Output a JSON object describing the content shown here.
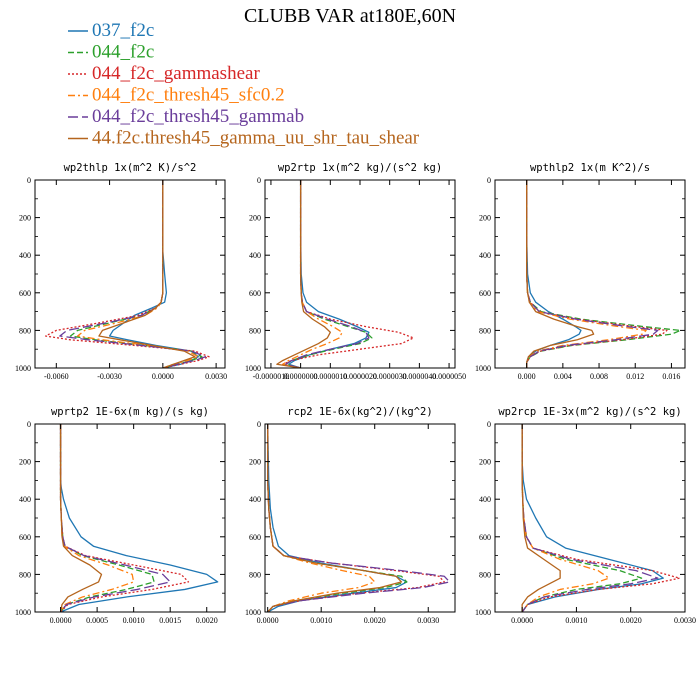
{
  "figure": {
    "title": "CLUBB VAR at180E,60N"
  },
  "legend": [
    {
      "label": "037_f2c",
      "color": "#1f77b4",
      "dash": "solid"
    },
    {
      "label": "044_f2c",
      "color": "#2ca02c",
      "dash": "dashed"
    },
    {
      "label": "044_f2c_gammashear",
      "color": "#d62728",
      "dash": "dotted"
    },
    {
      "label": "044_f2c_thresh45_sfc0.2",
      "color": "#ff7f0e",
      "dash": "dashdot"
    },
    {
      "label": "044_f2c_thresh45_gammab",
      "color": "#6a3d9a",
      "dash": "longdash"
    },
    {
      "label": "44.f2c.thresh45_gamma_uu_shr_tau_shear",
      "color": "#b5651d",
      "dash": "solid"
    }
  ],
  "chart_data": [
    {
      "type": "line",
      "title": "wp2thlp  1x(m^2 K)/s^2",
      "xlim": [
        -0.0072,
        0.0035
      ],
      "ylim": [
        1000,
        0
      ],
      "xticks": [
        "-0.0060",
        "-0.0030",
        "0.0000",
        "0.0030"
      ],
      "xtick_values": [
        -0.006,
        -0.003,
        0.0,
        0.003
      ],
      "yticks": [
        "0",
        "200",
        "400",
        "600",
        "800",
        "1000"
      ],
      "y": [
        0,
        200,
        380,
        500,
        600,
        650,
        680,
        720,
        760,
        800,
        830,
        850,
        880,
        910,
        940,
        960,
        980,
        1000
      ],
      "series": [
        {
          "values": [
            0,
            0,
            0,
            0.0001,
            0.0002,
            0.0001,
            -0.0006,
            -0.0016,
            -0.0022,
            -0.0028,
            -0.003,
            -0.002,
            -0.0004,
            0.0016,
            0.002,
            0.0016,
            0.001,
            0.0
          ]
        },
        {
          "values": [
            0,
            0,
            0,
            0,
            0,
            -0.0001,
            -0.0004,
            -0.0012,
            -0.003,
            -0.0048,
            -0.0052,
            -0.0038,
            -0.001,
            0.0016,
            0.0022,
            0.0016,
            0.0008,
            0.0
          ]
        },
        {
          "values": [
            0,
            0,
            0,
            0,
            0,
            -0.0001,
            -0.0004,
            -0.0014,
            -0.0036,
            -0.006,
            -0.0066,
            -0.0052,
            -0.0016,
            0.0018,
            0.0026,
            0.002,
            0.001,
            0.0
          ]
        },
        {
          "values": [
            0,
            0,
            0,
            0,
            0,
            -0.0001,
            -0.0003,
            -0.001,
            -0.0026,
            -0.0044,
            -0.0048,
            -0.0034,
            -0.0008,
            0.0014,
            0.002,
            0.0014,
            0.0006,
            0.0
          ]
        },
        {
          "values": [
            0,
            0,
            0,
            0,
            0,
            -0.0001,
            -0.0004,
            -0.0012,
            -0.0032,
            -0.0054,
            -0.0058,
            -0.0042,
            -0.0012,
            0.0016,
            0.0024,
            0.0018,
            0.0008,
            0.0
          ]
        },
        {
          "values": [
            0,
            0,
            0,
            0,
            0,
            -0.0001,
            -0.0004,
            -0.001,
            -0.0022,
            -0.0034,
            -0.0036,
            -0.0024,
            -0.0006,
            0.0012,
            0.0018,
            0.0012,
            0.0006,
            0.0
          ]
        }
      ]
    },
    {
      "type": "line",
      "title": "wp2rtp  1x(m^2 kg)/(s^2 kg)",
      "xlim": [
        -1.2e-06,
        5.2e-06
      ],
      "ylim": [
        1000,
        0
      ],
      "xticks": [
        "-0.0000010",
        "0.0000000",
        "0.0000010",
        "0.0000020",
        "0.0000030",
        "0.0000040",
        "0.0000050"
      ],
      "xtick_values": [
        -1e-06,
        0.0,
        1e-06,
        2e-06,
        3e-06,
        4e-06,
        5e-06
      ],
      "yticks": [
        "0",
        "200",
        "400",
        "600",
        "800",
        "1000"
      ],
      "y": [
        0,
        300,
        500,
        600,
        650,
        700,
        740,
        780,
        810,
        840,
        870,
        900,
        930,
        960,
        980,
        1000
      ],
      "series": [
        {
          "values": [
            0,
            0,
            2e-08,
            8e-08,
            2e-07,
            6e-07,
            1.3e-06,
            1.9e-06,
            2.3e-06,
            2.2e-06,
            1.8e-06,
            1e-06,
            3e-07,
            -2e-07,
            -4e-07,
            0.0
          ]
        },
        {
          "values": [
            0,
            0,
            0,
            2e-08,
            6e-08,
            2e-07,
            8e-07,
            1.6e-06,
            2.2e-06,
            2.4e-06,
            2e-06,
            1.1e-06,
            3e-07,
            -3e-07,
            -5e-07,
            0.0
          ]
        },
        {
          "values": [
            0,
            0,
            0,
            2e-08,
            6e-08,
            2e-07,
            1e-06,
            2.2e-06,
            3.3e-06,
            3.8e-06,
            3.4e-06,
            2e-06,
            6e-07,
            -3e-07,
            -6e-07,
            0.0
          ]
        },
        {
          "values": [
            0,
            0,
            0,
            2e-08,
            5e-08,
            2e-07,
            6e-07,
            1.1e-06,
            1.4e-06,
            1.3e-06,
            9e-07,
            4e-07,
            0.0,
            -4e-07,
            -6e-07,
            0.0
          ]
        },
        {
          "values": [
            0,
            0,
            0,
            2e-08,
            6e-08,
            2e-07,
            9e-07,
            1.7e-06,
            2.2e-06,
            2.3e-06,
            1.9e-06,
            1e-06,
            2e-07,
            -3e-07,
            -5e-07,
            0.0
          ]
        },
        {
          "values": [
            0,
            0,
            0,
            2e-08,
            4e-08,
            1e-07,
            4e-07,
            8e-07,
            1e-06,
            9e-07,
            6e-07,
            2e-07,
            -2e-07,
            -6e-07,
            -8e-07,
            0.0
          ]
        }
      ]
    },
    {
      "type": "line",
      "title": "wpthlp2  1x(m K^2)/s",
      "xlim": [
        -0.0035,
        0.0175
      ],
      "ylim": [
        1000,
        0
      ],
      "xticks": [
        "0.000",
        "0.004",
        "0.008",
        "0.012",
        "0.016"
      ],
      "xtick_values": [
        0.0,
        0.004,
        0.008,
        0.012,
        0.016
      ],
      "yticks": [
        "0",
        "200",
        "400",
        "600",
        "800",
        "1000"
      ],
      "y": [
        0,
        300,
        500,
        600,
        650,
        700,
        740,
        780,
        800,
        820,
        850,
        880,
        910,
        940,
        970,
        1000
      ],
      "series": [
        {
          "values": [
            0,
            0,
            0.0001,
            0.0004,
            0.001,
            0.0024,
            0.004,
            0.0054,
            0.006,
            0.0058,
            0.0046,
            0.0026,
            0.001,
            0.0002,
            0.0,
            0.0
          ]
        },
        {
          "values": [
            0,
            0,
            0,
            0.0001,
            0.0004,
            0.0016,
            0.006,
            0.013,
            0.017,
            0.016,
            0.011,
            0.005,
            0.0016,
            0.0004,
            0.0,
            0.0
          ]
        },
        {
          "values": [
            0,
            0,
            0,
            0.0001,
            0.0004,
            0.0014,
            0.0056,
            0.012,
            0.0155,
            0.015,
            0.0105,
            0.0048,
            0.0015,
            0.0004,
            0.0,
            0.0
          ]
        },
        {
          "values": [
            0,
            0,
            0,
            0.0001,
            0.0003,
            0.0012,
            0.0048,
            0.0102,
            0.0132,
            0.0128,
            0.009,
            0.004,
            0.0012,
            0.0003,
            0.0,
            0.0
          ]
        },
        {
          "values": [
            0,
            0,
            0,
            0.0001,
            0.0004,
            0.0014,
            0.0054,
            0.0112,
            0.0145,
            0.014,
            0.0098,
            0.0044,
            0.0014,
            0.0004,
            0.0,
            0.0
          ]
        },
        {
          "values": [
            0,
            0,
            0,
            0.0001,
            0.0003,
            0.001,
            0.003,
            0.0056,
            0.0072,
            0.0074,
            0.0056,
            0.0026,
            0.0008,
            0.0002,
            0.0,
            0.0
          ]
        }
      ]
    },
    {
      "type": "line",
      "title": "wprtp2  1E-6x(m kg)/(s kg)",
      "xlim": [
        -0.00035,
        0.00225
      ],
      "ylim": [
        1000,
        0
      ],
      "xticks": [
        "0.0000",
        "0.0005",
        "0.0010",
        "0.0015",
        "0.0020"
      ],
      "xtick_values": [
        0.0,
        0.0005,
        0.001,
        0.0015,
        0.002
      ],
      "yticks": [
        "0",
        "200",
        "400",
        "600",
        "800",
        "1000"
      ],
      "y": [
        0,
        200,
        300,
        340,
        400,
        500,
        600,
        650,
        700,
        750,
        800,
        840,
        880,
        920,
        960,
        1000
      ],
      "series": [
        {
          "values": [
            0,
            0,
            0,
            1e-05,
            4e-05,
            0.00012,
            0.00028,
            0.00045,
            0.0009,
            0.0015,
            0.002,
            0.00215,
            0.0017,
            0.0009,
            0.00025,
            0.0
          ]
        },
        {
          "values": [
            0,
            0,
            0,
            0,
            0,
            1e-05,
            3e-05,
            6e-05,
            0.0003,
            0.0008,
            0.00125,
            0.00128,
            0.0009,
            0.0004,
            8e-05,
            0.0
          ]
        },
        {
          "values": [
            0,
            0,
            0,
            0,
            0,
            1e-05,
            3e-05,
            6e-05,
            0.00034,
            0.001,
            0.00165,
            0.00175,
            0.00125,
            0.00056,
            0.0001,
            0.0
          ]
        },
        {
          "values": [
            0,
            0,
            0,
            0,
            0,
            1e-05,
            2e-05,
            5e-05,
            0.00025,
            0.00065,
            0.00098,
            0.001,
            0.0007,
            0.0003,
            6e-05,
            0.0
          ]
        },
        {
          "values": [
            0,
            0,
            0,
            0,
            0,
            1e-05,
            3e-05,
            6e-05,
            0.00032,
            0.00088,
            0.0014,
            0.0015,
            0.00105,
            0.00046,
            8e-05,
            0.0
          ]
        },
        {
          "values": [
            0,
            0,
            0,
            0,
            0,
            1e-05,
            2e-05,
            4e-05,
            0.00016,
            0.0004,
            0.00056,
            0.00052,
            0.0003,
            0.0001,
            2e-05,
            0.0
          ]
        }
      ]
    },
    {
      "type": "line",
      "title": "rcp2  1E-6x(kg^2)/(kg^2)",
      "xlim": [
        -5e-05,
        0.0035
      ],
      "ylim": [
        1000,
        0
      ],
      "xticks": [
        "0.0000",
        "0.0010",
        "0.0020",
        "0.0030"
      ],
      "xtick_values": [
        0.0,
        0.001,
        0.002,
        0.003
      ],
      "yticks": [
        "0",
        "200",
        "400",
        "600",
        "800",
        "1000"
      ],
      "y": [
        0,
        300,
        450,
        550,
        650,
        700,
        740,
        780,
        810,
        840,
        870,
        900,
        940,
        970,
        1000
      ],
      "series": [
        {
          "values": [
            0,
            2e-05,
            5e-05,
            0.0001,
            0.0002,
            0.0004,
            0.001,
            0.0018,
            0.0024,
            0.0026,
            0.0024,
            0.0016,
            0.0006,
            0.0002,
            0.0
          ]
        },
        {
          "values": [
            0,
            0,
            2e-05,
            5e-05,
            0.0001,
            0.0003,
            0.0009,
            0.0018,
            0.0025,
            0.0026,
            0.0022,
            0.0014,
            0.0005,
            0.0001,
            0.0
          ]
        },
        {
          "values": [
            0,
            0,
            2e-05,
            5e-05,
            0.0001,
            0.0003,
            0.0012,
            0.0024,
            0.0032,
            0.0033,
            0.0028,
            0.0017,
            0.0006,
            0.0001,
            0.0
          ]
        },
        {
          "values": [
            0,
            0,
            2e-05,
            5e-05,
            0.0001,
            0.0003,
            0.0008,
            0.0014,
            0.0019,
            0.002,
            0.0017,
            0.001,
            0.0004,
            0.0001,
            0.0
          ]
        },
        {
          "values": [
            0,
            0,
            2e-05,
            5e-05,
            0.0001,
            0.0003,
            0.0012,
            0.0025,
            0.0033,
            0.0034,
            0.0029,
            0.0018,
            0.0006,
            0.0001,
            0.0
          ]
        },
        {
          "values": [
            0,
            0,
            2e-05,
            5e-05,
            0.0001,
            0.0003,
            0.0009,
            0.0018,
            0.0024,
            0.0025,
            0.0021,
            0.0013,
            0.0005,
            0.0001,
            0.0
          ]
        }
      ]
    },
    {
      "type": "line",
      "title": "wp2rcp  1E-3x(m^2 kg)/(s^2 kg)",
      "xlim": [
        -0.0005,
        0.003
      ],
      "ylim": [
        1000,
        0
      ],
      "xticks": [
        "0.0000",
        "0.0010",
        "0.0020",
        "0.0030"
      ],
      "xtick_values": [
        0.0,
        0.001,
        0.002,
        0.003
      ],
      "yticks": [
        "0",
        "200",
        "400",
        "600",
        "800",
        "1000"
      ],
      "y": [
        0,
        200,
        300,
        400,
        500,
        600,
        660,
        720,
        780,
        820,
        850,
        880,
        920,
        960,
        1000
      ],
      "series": [
        {
          "values": [
            0,
            0,
            2e-05,
            8e-05,
            0.00025,
            0.00045,
            0.0008,
            0.0016,
            0.0024,
            0.0026,
            0.0022,
            0.0014,
            0.0006,
            0.0001,
            0.0
          ]
        },
        {
          "values": [
            0,
            0,
            0,
            1e-05,
            3e-05,
            8e-05,
            0.0002,
            0.0008,
            0.0018,
            0.0022,
            0.0018,
            0.001,
            0.0004,
            0.0001,
            0.0
          ]
        },
        {
          "values": [
            0,
            0,
            0,
            1e-05,
            3e-05,
            8e-05,
            0.0002,
            0.001,
            0.0024,
            0.0029,
            0.0024,
            0.0014,
            0.0005,
            0.0001,
            0.0
          ]
        },
        {
          "values": [
            0,
            0,
            0,
            1e-05,
            3e-05,
            7e-05,
            0.0002,
            0.0007,
            0.0014,
            0.0016,
            0.0013,
            0.0007,
            0.0003,
            0.0001,
            0.0
          ]
        },
        {
          "values": [
            0,
            0,
            0,
            1e-05,
            3e-05,
            8e-05,
            0.0002,
            0.0009,
            0.0021,
            0.0025,
            0.002,
            0.0012,
            0.0004,
            0.0001,
            0.0
          ]
        },
        {
          "values": [
            0,
            0,
            0,
            1e-05,
            2e-05,
            5e-05,
            0.0001,
            0.0004,
            0.0007,
            0.0007,
            0.0005,
            0.0003,
            0.0001,
            0.0,
            0.0
          ]
        }
      ]
    }
  ]
}
